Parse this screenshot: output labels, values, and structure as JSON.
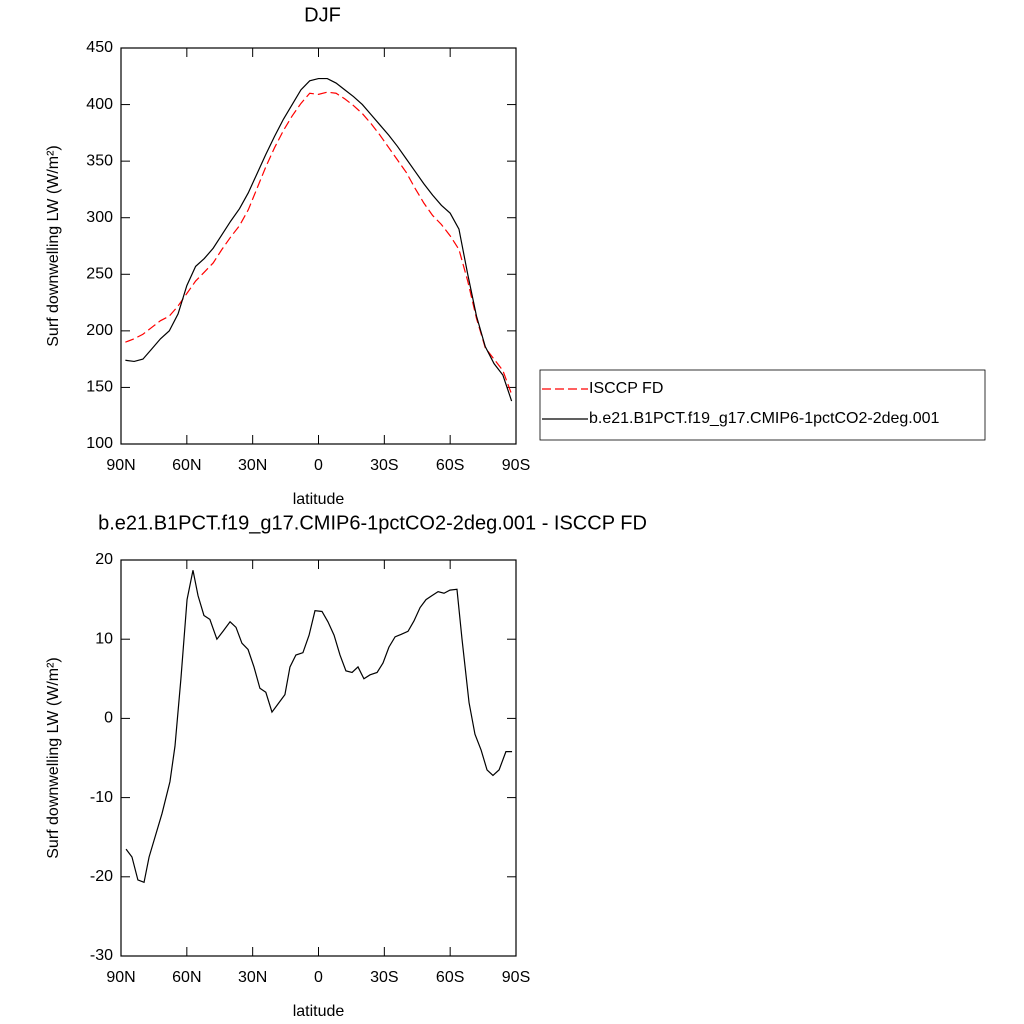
{
  "chart_data": [
    {
      "type": "line",
      "title": "DJF",
      "xlabel": "latitude",
      "ylabel": "Surf downwelling LW (W/m²)",
      "x": [
        88,
        84,
        80,
        76,
        72,
        68,
        64,
        60,
        56,
        52,
        48,
        44,
        40,
        36,
        32,
        28,
        24,
        20,
        16,
        12,
        8,
        4,
        0,
        -4,
        -8,
        -12,
        -16,
        -20,
        -24,
        -28,
        -32,
        -36,
        -40,
        -44,
        -48,
        -52,
        -56,
        -60,
        -64,
        -68,
        -72,
        -76,
        -80,
        -84,
        -88
      ],
      "series": [
        {
          "name": "ISCCP FD",
          "color": "#ff0000",
          "dash": "dashed",
          "values": [
            190,
            193,
            197,
            203,
            209,
            213,
            222,
            233,
            244,
            252,
            260,
            272,
            283,
            293,
            307,
            326,
            345,
            362,
            377,
            390,
            401,
            410,
            409,
            411,
            410,
            405,
            399,
            392,
            383,
            373,
            362,
            351,
            340,
            326,
            313,
            302,
            294,
            284,
            272,
            244,
            211,
            185,
            175,
            165,
            144
          ]
        },
        {
          "name": "b.e21.B1PCT.f19_g17.CMIP6-1pctCO2-2deg.001",
          "color": "#000000",
          "dash": "solid",
          "values": [
            174,
            173,
            175,
            184,
            193,
            200,
            215,
            240,
            257,
            264,
            273,
            285,
            297,
            308,
            322,
            339,
            356,
            372,
            387,
            400,
            413,
            421,
            423,
            423,
            419,
            413,
            407,
            400,
            391,
            382,
            373,
            363,
            352,
            341,
            330,
            320,
            311,
            304,
            290,
            250,
            213,
            186,
            171,
            161,
            138
          ]
        }
      ],
      "xlim": [
        90,
        -90
      ],
      "xticks": [
        {
          "value": 90,
          "label": "90N"
        },
        {
          "value": 60,
          "label": "60N"
        },
        {
          "value": 30,
          "label": "30N"
        },
        0,
        {
          "value": -30,
          "label": "30S"
        },
        {
          "value": -60,
          "label": "60S"
        },
        {
          "value": -90,
          "label": "90S"
        }
      ],
      "ylim": [
        100,
        450
      ],
      "yticks": [
        100,
        150,
        200,
        250,
        300,
        350,
        400,
        450
      ],
      "legend": "right"
    },
    {
      "type": "line",
      "title": "b.e21.B1PCT.f19_g17.CMIP6-1pctCO2-2deg.001 - ISCCP FD",
      "xlabel": "latitude",
      "ylabel": "Surf downwelling LW (W/m²)",
      "x": [
        87.7,
        85,
        82.3,
        79.5,
        77.2,
        71.3,
        67.7,
        65.4,
        62.7,
        59.9,
        57.2,
        54.9,
        52.2,
        49.5,
        46.3,
        43.5,
        40.3,
        37.6,
        34.9,
        32.1,
        29.4,
        26.7,
        24,
        21.2,
        18.5,
        15.3,
        13,
        10.3,
        7.1,
        4.3,
        1.6,
        -1.6,
        -4.3,
        -7.1,
        -9.8,
        -12.5,
        -15.3,
        -18,
        -20.7,
        -23.5,
        -26.7,
        -29.4,
        -32.1,
        -34.9,
        -37.6,
        -40.8,
        -43.5,
        -46.3,
        -49,
        -51.7,
        -54.5,
        -57.2,
        -59.9,
        -63.1,
        -65.4,
        -68.6,
        -71.3,
        -74.1,
        -76.8,
        -79.5,
        -82.3,
        -85.4,
        -88.2
      ],
      "series": [
        {
          "name": "b.e21.B1PCT.f19_g17.CMIP6-1pctCO2-2deg.001 - ISCCP FD",
          "color": "#000000",
          "dash": "solid",
          "values": [
            -16.5,
            -17.5,
            -20.4,
            -20.7,
            -17.5,
            -12,
            -8,
            -3.5,
            5,
            15,
            18.7,
            15.5,
            13,
            12.5,
            10,
            11,
            12.2,
            11.5,
            9.5,
            8.7,
            6.5,
            3.8,
            3.3,
            0.8,
            1.8,
            3,
            6.5,
            8,
            8.3,
            10.5,
            13.6,
            13.5,
            12.2,
            10.5,
            8,
            6,
            5.8,
            6.5,
            5,
            5.5,
            5.8,
            7,
            9,
            10.3,
            10.6,
            11,
            12.3,
            14,
            15,
            15.5,
            16,
            15.8,
            16.2,
            16.3,
            10,
            2,
            -2,
            -4,
            -6.5,
            -7.2,
            -6.5,
            -4.2,
            -4.2
          ]
        }
      ],
      "xlim": [
        90,
        -90
      ],
      "xticks": [
        {
          "value": 90,
          "label": "90N"
        },
        {
          "value": 60,
          "label": "60N"
        },
        {
          "value": 30,
          "label": "30N"
        },
        0,
        {
          "value": -30,
          "label": "30S"
        },
        {
          "value": -60,
          "label": "60S"
        },
        {
          "value": -90,
          "label": "90S"
        }
      ],
      "ylim": [
        -30,
        20
      ],
      "yticks": [
        -30,
        -20,
        -10,
        0,
        10,
        20
      ]
    }
  ]
}
